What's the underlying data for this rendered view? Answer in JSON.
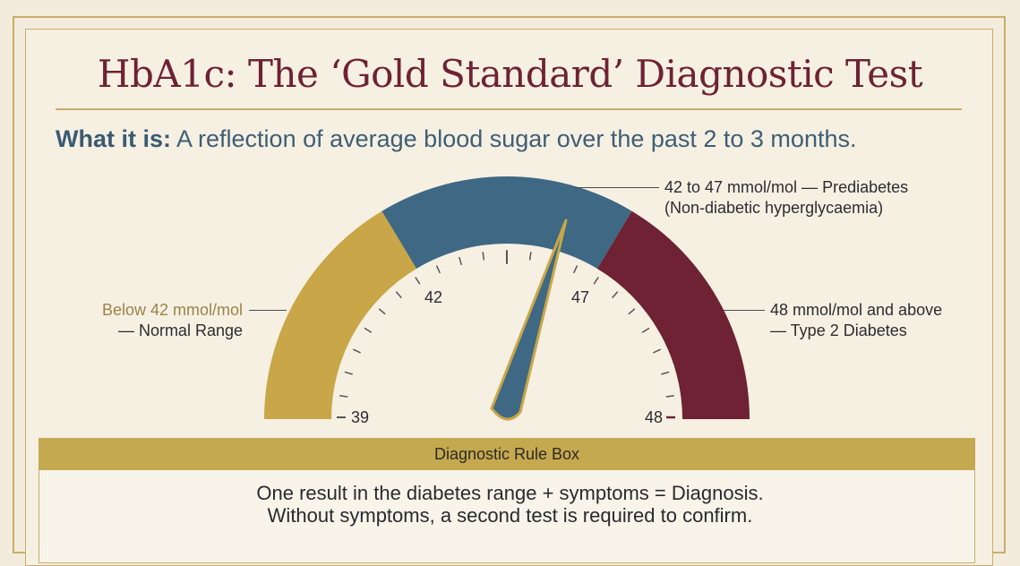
{
  "title": "HbA1c: The ‘Gold Standard’ Diagnostic Test",
  "what_it_is": {
    "label": "What it is:",
    "text": " A reflection of average blood sugar over the past 2 to 3 months."
  },
  "gauge": {
    "min": 39,
    "max": 48,
    "zones": [
      {
        "name": "normal",
        "color": "#c9a647"
      },
      {
        "name": "prediabetes",
        "color": "#3e6883"
      },
      {
        "name": "diabetes",
        "color": "#6e2233"
      }
    ],
    "tick_labels": [
      "39",
      "42",
      "47",
      "48"
    ],
    "needle_color": "#3e6883",
    "needle_edge_color": "#c9a647"
  },
  "callouts": {
    "prediabetes": {
      "line1": "42 to 47 mmol/mol — Prediabetes",
      "line2": "(Non-diabetic hyperglycaemia)"
    },
    "normal": {
      "line1_prefix": "Below ",
      "line1_value": "42 mmol/mol",
      "line2": "— Normal Range"
    },
    "diabetes": {
      "line1": "48 mmol/mol and above",
      "line2": "— Type 2 Diabetes"
    }
  },
  "rule_box": {
    "heading": "Diagnostic Rule Box",
    "line1": "One result in the diabetes range + symptoms = Diagnosis.",
    "line2": "Without symptoms, a second test is required to confirm."
  }
}
